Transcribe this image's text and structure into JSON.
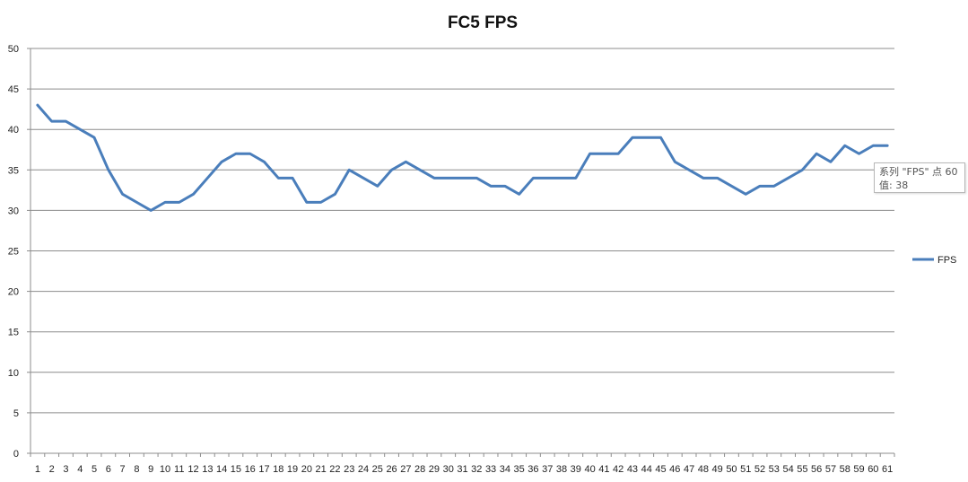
{
  "chart_data": {
    "type": "line",
    "title": "FC5 FPS",
    "xlabel": "",
    "ylabel": "",
    "ylim": [
      0,
      50
    ],
    "yticks": [
      0,
      5,
      10,
      15,
      20,
      25,
      30,
      35,
      40,
      45,
      50
    ],
    "grid": true,
    "legend_position": "right",
    "categories": [
      "1",
      "2",
      "3",
      "4",
      "5",
      "6",
      "7",
      "8",
      "9",
      "10",
      "11",
      "12",
      "13",
      "14",
      "15",
      "16",
      "17",
      "18",
      "19",
      "20",
      "21",
      "22",
      "23",
      "24",
      "25",
      "26",
      "27",
      "28",
      "29",
      "30",
      "31",
      "32",
      "33",
      "34",
      "35",
      "36",
      "37",
      "38",
      "39",
      "40",
      "41",
      "42",
      "43",
      "44",
      "45",
      "46",
      "47",
      "48",
      "49",
      "50",
      "51",
      "52",
      "53",
      "54",
      "55",
      "56",
      "57",
      "58",
      "59",
      "60",
      "61"
    ],
    "series": [
      {
        "name": "FPS",
        "color": "#4a7ebb",
        "values": [
          43,
          41,
          41,
          40,
          39,
          35,
          32,
          31,
          30,
          31,
          31,
          32,
          34,
          36,
          37,
          37,
          36,
          34,
          34,
          31,
          31,
          32,
          35,
          34,
          33,
          35,
          36,
          35,
          34,
          34,
          34,
          34,
          33,
          33,
          32,
          34,
          34,
          34,
          34,
          37,
          37,
          37,
          39,
          39,
          39,
          36,
          35,
          34,
          34,
          33,
          32,
          33,
          33,
          34,
          35,
          37,
          36,
          38,
          37,
          38,
          38
        ]
      }
    ]
  },
  "tooltip": {
    "line1": "系列 \"FPS\" 点 60",
    "line2": "值: 38"
  }
}
